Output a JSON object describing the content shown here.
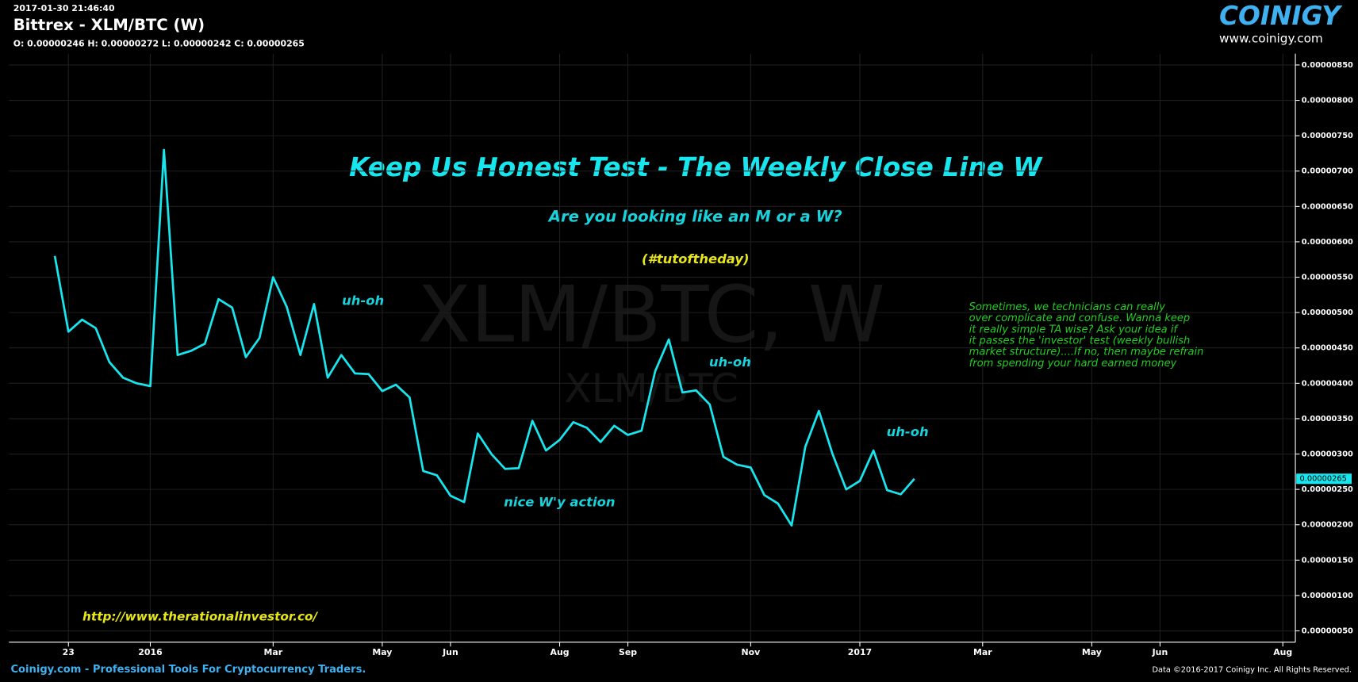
{
  "header": {
    "timestamp": "2017-01-30 21:46:40",
    "title": "Bittrex - XLM/BTC (W)",
    "ohlc": "O: 0.00000246 H: 0.00000272 L: 0.00000242 C: 0.00000265"
  },
  "logo": {
    "name": "COINIGY",
    "url": "www.coinigy.com"
  },
  "watermark": {
    "main": "XLM/BTC, W",
    "sub": "XLM/BTC"
  },
  "footer": {
    "left": "Coinigy.com - Professional Tools For Cryptocurrency Traders.",
    "right": "Data ©2016-2017 Coinigy Inc. All Rights Reserved."
  },
  "chart_data": {
    "type": "line",
    "title": "Keep Us Honest Test - The Weekly Close Line W",
    "subtitle": "Are you looking like an M or a W?",
    "color": "#18e6ee",
    "grid": true,
    "x": [
      0,
      1,
      2,
      3,
      4,
      5,
      6,
      7,
      8,
      9,
      10,
      11,
      12,
      13,
      14,
      15,
      16,
      17,
      18,
      19,
      20,
      21,
      22,
      23,
      24,
      25,
      26,
      27,
      28,
      29,
      30,
      31,
      32,
      33,
      34,
      35,
      36,
      37,
      38,
      39,
      40,
      41,
      42,
      43,
      44,
      45,
      46,
      47,
      48,
      49,
      50,
      51,
      52,
      53,
      54,
      55,
      56,
      57,
      58,
      59,
      60,
      61,
      62,
      63
    ],
    "values": [
      5.8e-06,
      4.73e-06,
      4.9e-06,
      4.78e-06,
      4.3e-06,
      4.08e-06,
      4e-06,
      3.96e-06,
      7.3e-06,
      4.4e-06,
      4.46e-06,
      4.56e-06,
      5.19e-06,
      5.07e-06,
      4.37e-06,
      4.64e-06,
      5.5e-06,
      5.08e-06,
      4.4e-06,
      5.12e-06,
      4.08e-06,
      4.4e-06,
      4.14e-06,
      4.13e-06,
      3.89e-06,
      3.98e-06,
      3.8e-06,
      2.76e-06,
      2.7e-06,
      2.41e-06,
      2.32e-06,
      3.29e-06,
      3e-06,
      2.79e-06,
      2.8e-06,
      3.47e-06,
      3.05e-06,
      3.2e-06,
      3.45e-06,
      3.37e-06,
      3.17e-06,
      3.4e-06,
      3.27e-06,
      3.33e-06,
      4.17e-06,
      4.62e-06,
      3.87e-06,
      3.9e-06,
      3.7e-06,
      2.96e-06,
      2.85e-06,
      2.81e-06,
      2.42e-06,
      2.3e-06,
      1.99e-06,
      3.1e-06,
      3.61e-06,
      3e-06,
      2.5e-06,
      2.62e-06,
      3.05e-06,
      2.49e-06,
      2.43e-06,
      2.65e-06
    ],
    "last_price_label": "0.00000265",
    "xlim": [
      -3.36,
      90.92
    ],
    "xticks": [
      {
        "value": 1,
        "label": "23"
      },
      {
        "value": 7,
        "label": "2016"
      },
      {
        "value": 16,
        "label": "Mar"
      },
      {
        "value": 24,
        "label": "May"
      },
      {
        "value": 29,
        "label": "Jun"
      },
      {
        "value": 37,
        "label": "Aug"
      },
      {
        "value": 42,
        "label": "Sep"
      },
      {
        "value": 51,
        "label": "Nov"
      },
      {
        "value": 59,
        "label": "2017"
      },
      {
        "value": 68,
        "label": "Mar"
      },
      {
        "value": 76,
        "label": "May"
      },
      {
        "value": 81,
        "label": "Jun"
      },
      {
        "value": 90,
        "label": "Aug"
      }
    ],
    "ylim": [
      3.4e-07,
      8.66e-06
    ],
    "yticks": [
      {
        "value": 5e-07,
        "label": "0.00000050"
      },
      {
        "value": 1e-06,
        "label": "0.00000100"
      },
      {
        "value": 1.5e-06,
        "label": "0.00000150"
      },
      {
        "value": 2e-06,
        "label": "0.00000200"
      },
      {
        "value": 2.5e-06,
        "label": "0.00000250"
      },
      {
        "value": 3e-06,
        "label": "0.00000300"
      },
      {
        "value": 3.5e-06,
        "label": "0.00000350"
      },
      {
        "value": 4e-06,
        "label": "0.00000400"
      },
      {
        "value": 4.5e-06,
        "label": "0.00000450"
      },
      {
        "value": 5e-06,
        "label": "0.00000500"
      },
      {
        "value": 5.5e-06,
        "label": "0.00000550"
      },
      {
        "value": 6e-06,
        "label": "0.00000600"
      },
      {
        "value": 6.5e-06,
        "label": "0.00000650"
      },
      {
        "value": 7e-06,
        "label": "0.00000700"
      },
      {
        "value": 7.5e-06,
        "label": "0.00000750"
      },
      {
        "value": 8e-06,
        "label": "0.00000800"
      },
      {
        "value": 8.5e-06,
        "label": "0.00000850"
      }
    ],
    "annotations": [
      {
        "text": "(#tutoftheday)",
        "color": "#e6e61a"
      },
      {
        "text": "uh-oh",
        "color": "#18d2dc"
      },
      {
        "text": "uh-oh",
        "color": "#18d2dc"
      },
      {
        "text": "uh-oh",
        "color": "#18d2dc"
      },
      {
        "text": "nice W'y action",
        "color": "#18d2dc"
      },
      {
        "text": "http://www.therationalinvestor.co/",
        "color": "#e6e61a"
      }
    ],
    "note": {
      "color": "#22cc22",
      "lines": [
        "Sometimes, we technicians can really",
        "over complicate and confuse. Wanna keep",
        "it really simple TA wise? Ask your idea if",
        "it passes the 'investor' test (weekly bullish",
        "market structure)....If no, then maybe refrain",
        "from spending your hard earned money"
      ]
    }
  }
}
